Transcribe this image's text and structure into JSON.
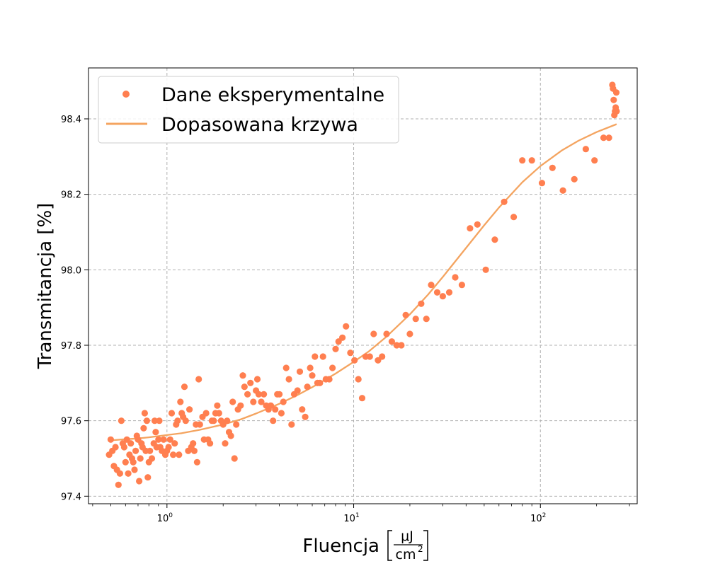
{
  "chart_data": {
    "type": "scatter",
    "xscale": "log",
    "xlim": [
      0.38,
      330
    ],
    "ylim": [
      97.38,
      98.535
    ],
    "grid": true,
    "legend_position": "top-left",
    "xlabel": "Fluencja",
    "xlabel_unit_num": "μJ",
    "xlabel_unit_den": "cm",
    "xlabel_unit_den_exp": "2",
    "ylabel": "Transmitancja [%]",
    "x_ticks": [
      {
        "value": 1,
        "base": "10",
        "exp": "0"
      },
      {
        "value": 10,
        "base": "10",
        "exp": "1"
      },
      {
        "value": 100,
        "base": "10",
        "exp": "2"
      }
    ],
    "y_ticks": [
      {
        "value": 97.4,
        "label": "97.4"
      },
      {
        "value": 97.6,
        "label": "97.6"
      },
      {
        "value": 97.8,
        "label": "97.8"
      },
      {
        "value": 98.0,
        "label": "98.0"
      },
      {
        "value": 98.2,
        "label": "98.2"
      },
      {
        "value": 98.4,
        "label": "98.4"
      }
    ],
    "colors": {
      "scatter": "#ff7f50",
      "fit": "#f4a460",
      "axes": "#000000",
      "grid": "#b0b0b0"
    },
    "series": [
      {
        "name": "Dane eksperymentalne",
        "kind": "scatter",
        "points": [
          [
            0.49,
            97.51
          ],
          [
            0.5,
            97.55
          ],
          [
            0.51,
            97.52
          ],
          [
            0.52,
            97.48
          ],
          [
            0.53,
            97.53
          ],
          [
            0.54,
            97.47
          ],
          [
            0.55,
            97.43
          ],
          [
            0.56,
            97.46
          ],
          [
            0.57,
            97.6
          ],
          [
            0.58,
            97.54
          ],
          [
            0.59,
            97.53
          ],
          [
            0.6,
            97.49
          ],
          [
            0.61,
            97.55
          ],
          [
            0.62,
            97.46
          ],
          [
            0.63,
            97.51
          ],
          [
            0.64,
            97.54
          ],
          [
            0.65,
            97.5
          ],
          [
            0.66,
            97.49
          ],
          [
            0.67,
            97.47
          ],
          [
            0.68,
            97.52
          ],
          [
            0.69,
            97.56
          ],
          [
            0.7,
            97.55
          ],
          [
            0.71,
            97.44
          ],
          [
            0.72,
            97.5
          ],
          [
            0.73,
            97.54
          ],
          [
            0.74,
            97.53
          ],
          [
            0.75,
            97.58
          ],
          [
            0.76,
            97.62
          ],
          [
            0.77,
            97.52
          ],
          [
            0.78,
            97.6
          ],
          [
            0.79,
            97.45
          ],
          [
            0.8,
            97.49
          ],
          [
            0.81,
            97.52
          ],
          [
            0.83,
            97.5
          ],
          [
            0.85,
            97.54
          ],
          [
            0.86,
            97.6
          ],
          [
            0.87,
            97.57
          ],
          [
            0.88,
            97.53
          ],
          [
            0.9,
            97.55
          ],
          [
            0.91,
            97.6
          ],
          [
            0.92,
            97.53
          ],
          [
            0.94,
            97.52
          ],
          [
            0.96,
            97.55
          ],
          [
            0.98,
            97.51
          ],
          [
            1.0,
            97.52
          ],
          [
            1.02,
            97.53
          ],
          [
            1.04,
            97.55
          ],
          [
            1.06,
            97.62
          ],
          [
            1.08,
            97.51
          ],
          [
            1.1,
            97.54
          ],
          [
            1.12,
            97.59
          ],
          [
            1.14,
            97.6
          ],
          [
            1.16,
            97.51
          ],
          [
            1.18,
            97.65
          ],
          [
            1.2,
            97.62
          ],
          [
            1.22,
            97.61
          ],
          [
            1.24,
            97.69
          ],
          [
            1.26,
            97.6
          ],
          [
            1.3,
            97.52
          ],
          [
            1.32,
            97.63
          ],
          [
            1.35,
            97.53
          ],
          [
            1.38,
            97.54
          ],
          [
            1.4,
            97.52
          ],
          [
            1.43,
            97.59
          ],
          [
            1.45,
            97.49
          ],
          [
            1.48,
            97.71
          ],
          [
            1.5,
            97.59
          ],
          [
            1.55,
            97.61
          ],
          [
            1.58,
            97.55
          ],
          [
            1.62,
            97.62
          ],
          [
            1.66,
            97.55
          ],
          [
            1.7,
            97.54
          ],
          [
            1.74,
            97.6
          ],
          [
            1.78,
            97.6
          ],
          [
            1.82,
            97.62
          ],
          [
            1.86,
            97.64
          ],
          [
            1.9,
            97.62
          ],
          [
            1.95,
            97.6
          ],
          [
            2.0,
            97.59
          ],
          [
            2.05,
            97.54
          ],
          [
            2.1,
            97.6
          ],
          [
            2.15,
            97.57
          ],
          [
            2.2,
            97.56
          ],
          [
            2.25,
            97.65
          ],
          [
            2.3,
            97.5
          ],
          [
            2.35,
            97.59
          ],
          [
            2.4,
            97.63
          ],
          [
            2.48,
            97.64
          ],
          [
            2.55,
            97.72
          ],
          [
            2.6,
            97.69
          ],
          [
            2.7,
            97.67
          ],
          [
            2.8,
            97.7
          ],
          [
            2.9,
            97.65
          ],
          [
            3.0,
            97.68
          ],
          [
            3.05,
            97.71
          ],
          [
            3.1,
            97.67
          ],
          [
            3.2,
            97.65
          ],
          [
            3.3,
            97.67
          ],
          [
            3.4,
            97.64
          ],
          [
            3.5,
            97.63
          ],
          [
            3.6,
            97.64
          ],
          [
            3.7,
            97.6
          ],
          [
            3.8,
            97.63
          ],
          [
            3.9,
            97.67
          ],
          [
            4.0,
            97.67
          ],
          [
            4.1,
            97.62
          ],
          [
            4.2,
            97.65
          ],
          [
            4.35,
            97.74
          ],
          [
            4.5,
            97.71
          ],
          [
            4.65,
            97.59
          ],
          [
            4.8,
            97.67
          ],
          [
            5.0,
            97.68
          ],
          [
            5.15,
            97.73
          ],
          [
            5.3,
            97.63
          ],
          [
            5.5,
            97.61
          ],
          [
            5.65,
            97.69
          ],
          [
            5.85,
            97.74
          ],
          [
            6.0,
            97.72
          ],
          [
            6.2,
            97.77
          ],
          [
            6.4,
            97.7
          ],
          [
            6.6,
            97.7
          ],
          [
            6.85,
            97.77
          ],
          [
            7.1,
            97.71
          ],
          [
            7.4,
            97.71
          ],
          [
            7.7,
            97.74
          ],
          [
            8.0,
            97.79
          ],
          [
            8.3,
            97.81
          ],
          [
            8.7,
            97.82
          ],
          [
            9.1,
            97.85
          ],
          [
            9.6,
            97.78
          ],
          [
            10.1,
            97.76
          ],
          [
            10.6,
            97.71
          ],
          [
            11.1,
            97.66
          ],
          [
            11.6,
            97.77
          ],
          [
            12.2,
            97.77
          ],
          [
            12.8,
            97.83
          ],
          [
            13.5,
            97.76
          ],
          [
            14.2,
            97.77
          ],
          [
            15.0,
            97.83
          ],
          [
            16.0,
            97.81
          ],
          [
            17.0,
            97.8
          ],
          [
            18.0,
            97.8
          ],
          [
            19.0,
            97.88
          ],
          [
            20.0,
            97.83
          ],
          [
            21.5,
            97.87
          ],
          [
            23.0,
            97.91
          ],
          [
            24.5,
            97.87
          ],
          [
            26.0,
            97.96
          ],
          [
            28.0,
            97.94
          ],
          [
            30.0,
            97.93
          ],
          [
            32.5,
            97.94
          ],
          [
            35.0,
            97.98
          ],
          [
            38.0,
            97.96
          ],
          [
            42.0,
            98.11
          ],
          [
            46.0,
            98.12
          ],
          [
            51.0,
            98.0
          ],
          [
            57.0,
            98.08
          ],
          [
            64.0,
            98.18
          ],
          [
            72.0,
            98.14
          ],
          [
            80.0,
            98.29
          ],
          [
            90.0,
            98.29
          ],
          [
            102.0,
            98.23
          ],
          [
            116.0,
            98.27
          ],
          [
            132.0,
            98.21
          ],
          [
            152.0,
            98.24
          ],
          [
            175.0,
            98.32
          ],
          [
            195.0,
            98.29
          ],
          [
            218.0,
            98.35
          ],
          [
            233.0,
            98.35
          ],
          [
            243.0,
            98.49
          ],
          [
            245.0,
            98.48
          ],
          [
            247.0,
            98.45
          ],
          [
            249.0,
            98.41
          ],
          [
            251.0,
            98.42
          ],
          [
            253.0,
            98.43
          ],
          [
            255.0,
            98.47
          ],
          [
            256.0,
            98.42
          ]
        ]
      },
      {
        "name": "Dopasowana krzywa",
        "kind": "line",
        "points": [
          [
            0.5,
            97.548
          ],
          [
            0.6,
            97.551
          ],
          [
            0.7,
            97.553
          ],
          [
            0.8,
            97.556
          ],
          [
            1.0,
            97.562
          ],
          [
            1.2,
            97.567
          ],
          [
            1.5,
            97.576
          ],
          [
            2.0,
            97.59
          ],
          [
            2.5,
            97.604
          ],
          [
            3.0,
            97.619
          ],
          [
            4.0,
            97.645
          ],
          [
            5.0,
            97.668
          ],
          [
            6.0,
            97.689
          ],
          [
            7.0,
            97.708
          ],
          [
            8.0,
            97.725
          ],
          [
            10.0,
            97.756
          ],
          [
            12.0,
            97.783
          ],
          [
            15.0,
            97.823
          ],
          [
            20.0,
            97.882
          ],
          [
            25.0,
            97.934
          ],
          [
            30.0,
            97.981
          ],
          [
            40.0,
            98.058
          ],
          [
            50.0,
            98.118
          ],
          [
            60.0,
            98.165
          ],
          [
            80.0,
            98.232
          ],
          [
            100.0,
            98.275
          ],
          [
            130.0,
            98.316
          ],
          [
            160.0,
            98.342
          ],
          [
            200.0,
            98.365
          ],
          [
            256.0,
            98.386
          ]
        ]
      }
    ]
  }
}
